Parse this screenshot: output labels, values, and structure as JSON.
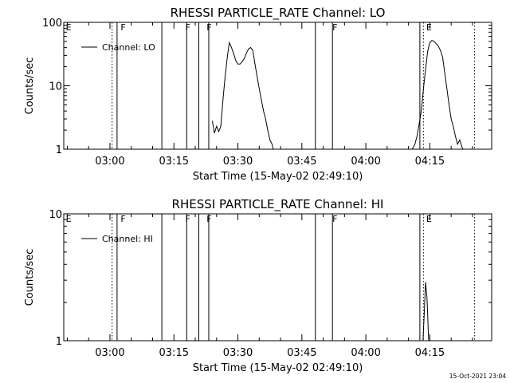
{
  "timestamp": "15-Oct-2021 23:04",
  "chart_data": [
    {
      "type": "line",
      "title": "RHESSI PARTICLE_RATE Channel: LO",
      "xlabel": "Start Time (15-May-02 02:49:10)",
      "ylabel": "Counts/sec",
      "yscale": "log",
      "ylim": [
        1,
        100
      ],
      "xlim": [
        "02:49:10",
        "04:29:30"
      ],
      "x_ticks": [
        "03:00",
        "03:15",
        "03:30",
        "03:45",
        "04:00",
        "04:15"
      ],
      "y_ticks": [
        "1",
        "10",
        "100"
      ],
      "legend": {
        "label": "Channel: LO",
        "placement": "top-left"
      },
      "flag_labels": [
        {
          "text": "E",
          "time": "02:49:40"
        },
        {
          "text": "F",
          "time": "03:02:30"
        },
        {
          "text": "F",
          "time": "03:17:40"
        },
        {
          "text": "F",
          "time": "03:22:40"
        },
        {
          "text": "F",
          "time": "03:52:10"
        },
        {
          "text": "E",
          "time": "04:14:10"
        }
      ],
      "solid_lines": [
        "03:01:40",
        "03:12:10",
        "03:18:00",
        "03:20:50",
        "03:23:10",
        "03:48:10",
        "03:52:10",
        "04:12:40"
      ],
      "dotted_lines": [
        "03:00:30",
        "04:13:30",
        "04:25:30"
      ],
      "series": [
        {
          "x": [
            "03:24:00",
            "03:24:30",
            "03:25:00",
            "03:25:30",
            "03:26:00",
            "03:26:30",
            "03:27:00",
            "03:27:30",
            "03:28:00",
            "03:28:30",
            "03:29:00",
            "03:29:30",
            "03:30:00",
            "03:30:30",
            "03:31:00",
            "03:31:30",
            "03:32:00",
            "03:32:30",
            "03:33:00",
            "03:33:30",
            "03:34:00",
            "03:34:30",
            "03:35:00",
            "03:35:30",
            "03:36:00",
            "03:36:30",
            "03:37:00",
            "03:37:30",
            "03:38:00",
            "03:38:30"
          ],
          "values": [
            2.8,
            1.8,
            2.3,
            1.9,
            2.3,
            6,
            14,
            28,
            48,
            40,
            32,
            25,
            22,
            22,
            24,
            27,
            33,
            38,
            40,
            36,
            22,
            14,
            9,
            6,
            4,
            3,
            2,
            1.4,
            1.2,
            0.9
          ]
        },
        {
          "x": [
            "04:10:30",
            "04:11:30",
            "04:12:00",
            "04:12:30",
            "04:13:00",
            "04:13:30",
            "04:14:00",
            "04:14:30",
            "04:15:00",
            "04:15:30",
            "04:16:00",
            "04:16:30",
            "04:17:00",
            "04:17:30",
            "04:18:00",
            "04:18:30",
            "04:19:00",
            "04:19:30",
            "04:20:00",
            "04:20:30",
            "04:21:00",
            "04:21:30",
            "04:22:00",
            "04:22:30",
            "04:23:00"
          ],
          "values": [
            0.9,
            1.2,
            1.6,
            2.5,
            4,
            9,
            18,
            35,
            48,
            52,
            50,
            46,
            42,
            36,
            28,
            16,
            9,
            5,
            3,
            2.3,
            1.6,
            1.2,
            1.4,
            1.1,
            0.9
          ]
        }
      ]
    },
    {
      "type": "line",
      "title": "RHESSI PARTICLE_RATE Channel: HI",
      "xlabel": "Start Time (15-May-02 02:49:10)",
      "ylabel": "Counts/sec",
      "yscale": "log",
      "ylim": [
        1,
        10
      ],
      "xlim": [
        "02:49:10",
        "04:29:30"
      ],
      "x_ticks": [
        "03:00",
        "03:15",
        "03:30",
        "03:45",
        "04:00",
        "04:15"
      ],
      "y_ticks": [
        "1",
        "10"
      ],
      "legend": {
        "label": "Channel: HI",
        "placement": "top-left"
      },
      "flag_labels": [
        {
          "text": "E",
          "time": "02:49:40"
        },
        {
          "text": "F",
          "time": "03:02:30"
        },
        {
          "text": "F",
          "time": "03:17:40"
        },
        {
          "text": "F",
          "time": "03:22:40"
        },
        {
          "text": "F",
          "time": "03:52:10"
        },
        {
          "text": "E",
          "time": "04:14:10"
        }
      ],
      "solid_lines": [
        "03:01:40",
        "03:12:10",
        "03:18:00",
        "03:20:50",
        "03:23:10",
        "03:48:10",
        "03:52:10",
        "04:12:40"
      ],
      "dotted_lines": [
        "03:00:30",
        "04:13:30",
        "04:25:30"
      ],
      "series": [
        {
          "x": [
            "04:13:20",
            "04:13:40",
            "04:14:00",
            "04:14:10",
            "04:14:20",
            "04:14:30",
            "04:14:40",
            "04:14:50"
          ],
          "values": [
            0.9,
            1.6,
            2.9,
            2.5,
            2.2,
            1.6,
            1.1,
            0.9
          ]
        }
      ]
    }
  ]
}
